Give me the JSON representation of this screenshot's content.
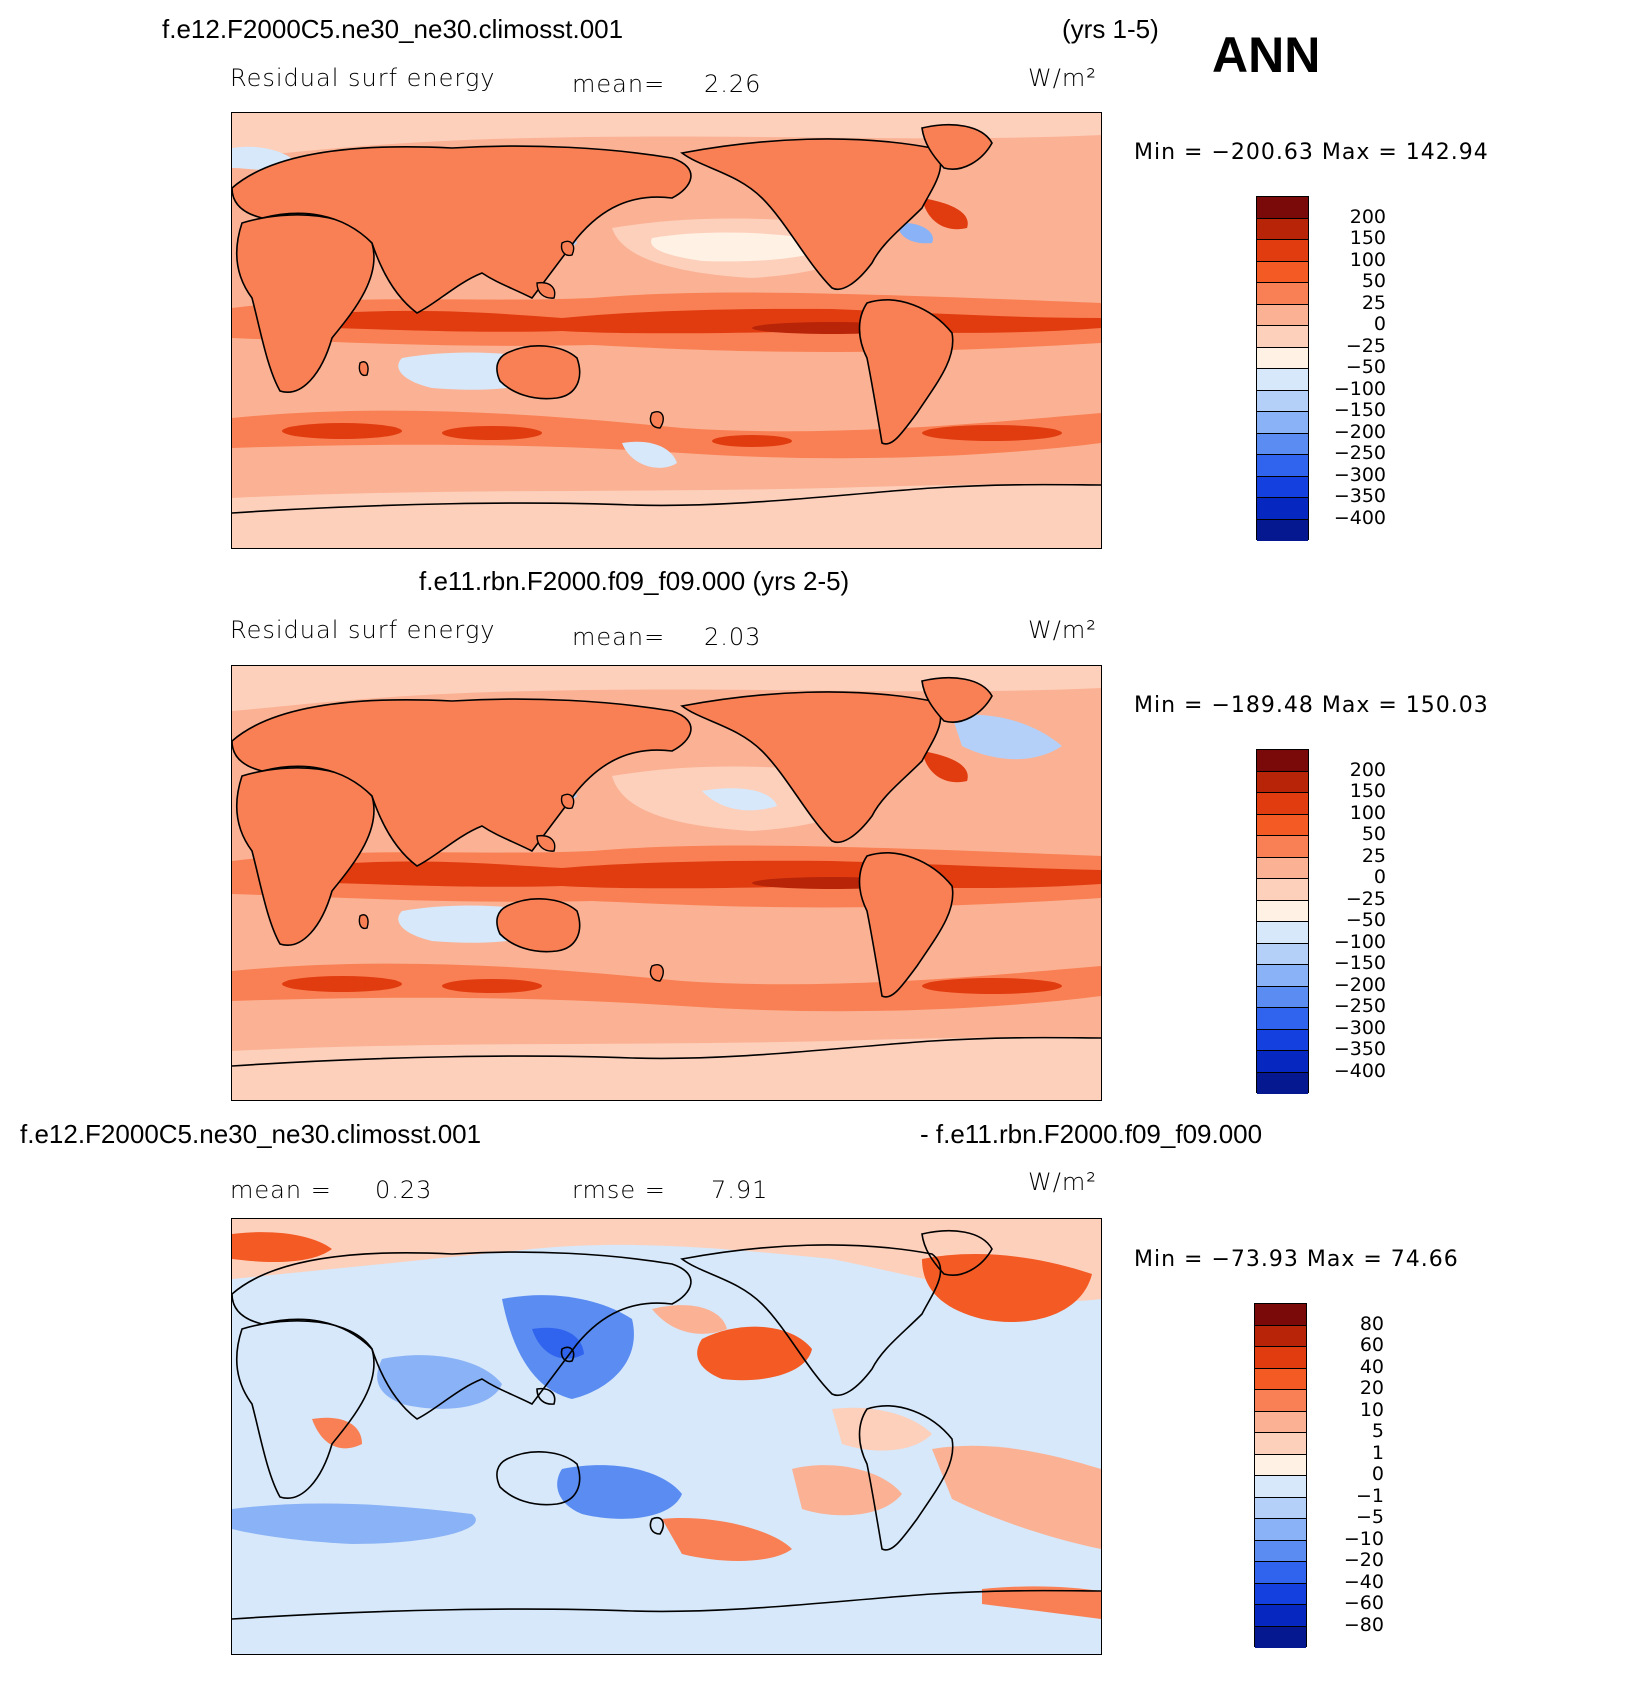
{
  "header": {
    "season": "ANN"
  },
  "panels": [
    {
      "title_left": "f.e12.F2000C5.ne30_ne30.climosst.001",
      "title_right": "(yrs 1-5)",
      "variable": "Residual surf energy",
      "stat1_label": "mean=",
      "stat1_value": "2.26",
      "stat2_label": "",
      "stat2_value": "",
      "units": "W/m²",
      "minmax": "Min = −200.63 Max = 142.94",
      "levels": [
        "200",
        "150",
        "100",
        "50",
        "25",
        "0",
        "−25",
        "−50",
        "−100",
        "−150",
        "−200",
        "−250",
        "−300",
        "−350",
        "−400"
      ],
      "colors": [
        "#7a0a0a",
        "#b82408",
        "#e03c10",
        "#f35a24",
        "#f98054",
        "#fbb294",
        "#fdd0bc",
        "#fff1e4",
        "#d6e8fa",
        "#b4d0f8",
        "#8ab2f6",
        "#5a8cf2",
        "#3064ee",
        "#1440e0",
        "#0628c0",
        "#061890"
      ]
    },
    {
      "title_left": "f.e11.rbn.F2000.f09_f09.000 (yrs 2-5)",
      "title_right": "",
      "variable": "Residual surf energy",
      "stat1_label": "mean=",
      "stat1_value": "2.03",
      "stat2_label": "",
      "stat2_value": "",
      "units": "W/m²",
      "minmax": "Min = −189.48 Max = 150.03",
      "levels": [
        "200",
        "150",
        "100",
        "50",
        "25",
        "0",
        "−25",
        "−50",
        "−100",
        "−150",
        "−200",
        "−250",
        "−300",
        "−350",
        "−400"
      ],
      "colors": [
        "#7a0a0a",
        "#b82408",
        "#e03c10",
        "#f35a24",
        "#f98054",
        "#fbb294",
        "#fdd0bc",
        "#fff1e4",
        "#d6e8fa",
        "#b4d0f8",
        "#8ab2f6",
        "#5a8cf2",
        "#3064ee",
        "#1440e0",
        "#0628c0",
        "#061890"
      ]
    },
    {
      "title_left": "f.e12.F2000C5.ne30_ne30.climosst.001",
      "title_right": "- f.e11.rbn.F2000.f09_f09.000",
      "variable": "",
      "stat1_label": "mean =",
      "stat1_value": "0.23",
      "stat2_label": "rmse =",
      "stat2_value": "7.91",
      "units": "W/m²",
      "minmax": "Min = −73.93 Max =  74.66",
      "levels": [
        "80",
        "60",
        "40",
        "20",
        "10",
        "5",
        "1",
        "0",
        "−1",
        "−5",
        "−10",
        "−20",
        "−40",
        "−60",
        "−80"
      ],
      "colors": [
        "#7a0a0a",
        "#b82408",
        "#e03c10",
        "#f35a24",
        "#f98054",
        "#fbb294",
        "#fdd0bc",
        "#fff1e4",
        "#d6e8fa",
        "#b4d0f8",
        "#8ab2f6",
        "#5a8cf2",
        "#3064ee",
        "#1440e0",
        "#0628c0",
        "#061890"
      ]
    }
  ]
}
